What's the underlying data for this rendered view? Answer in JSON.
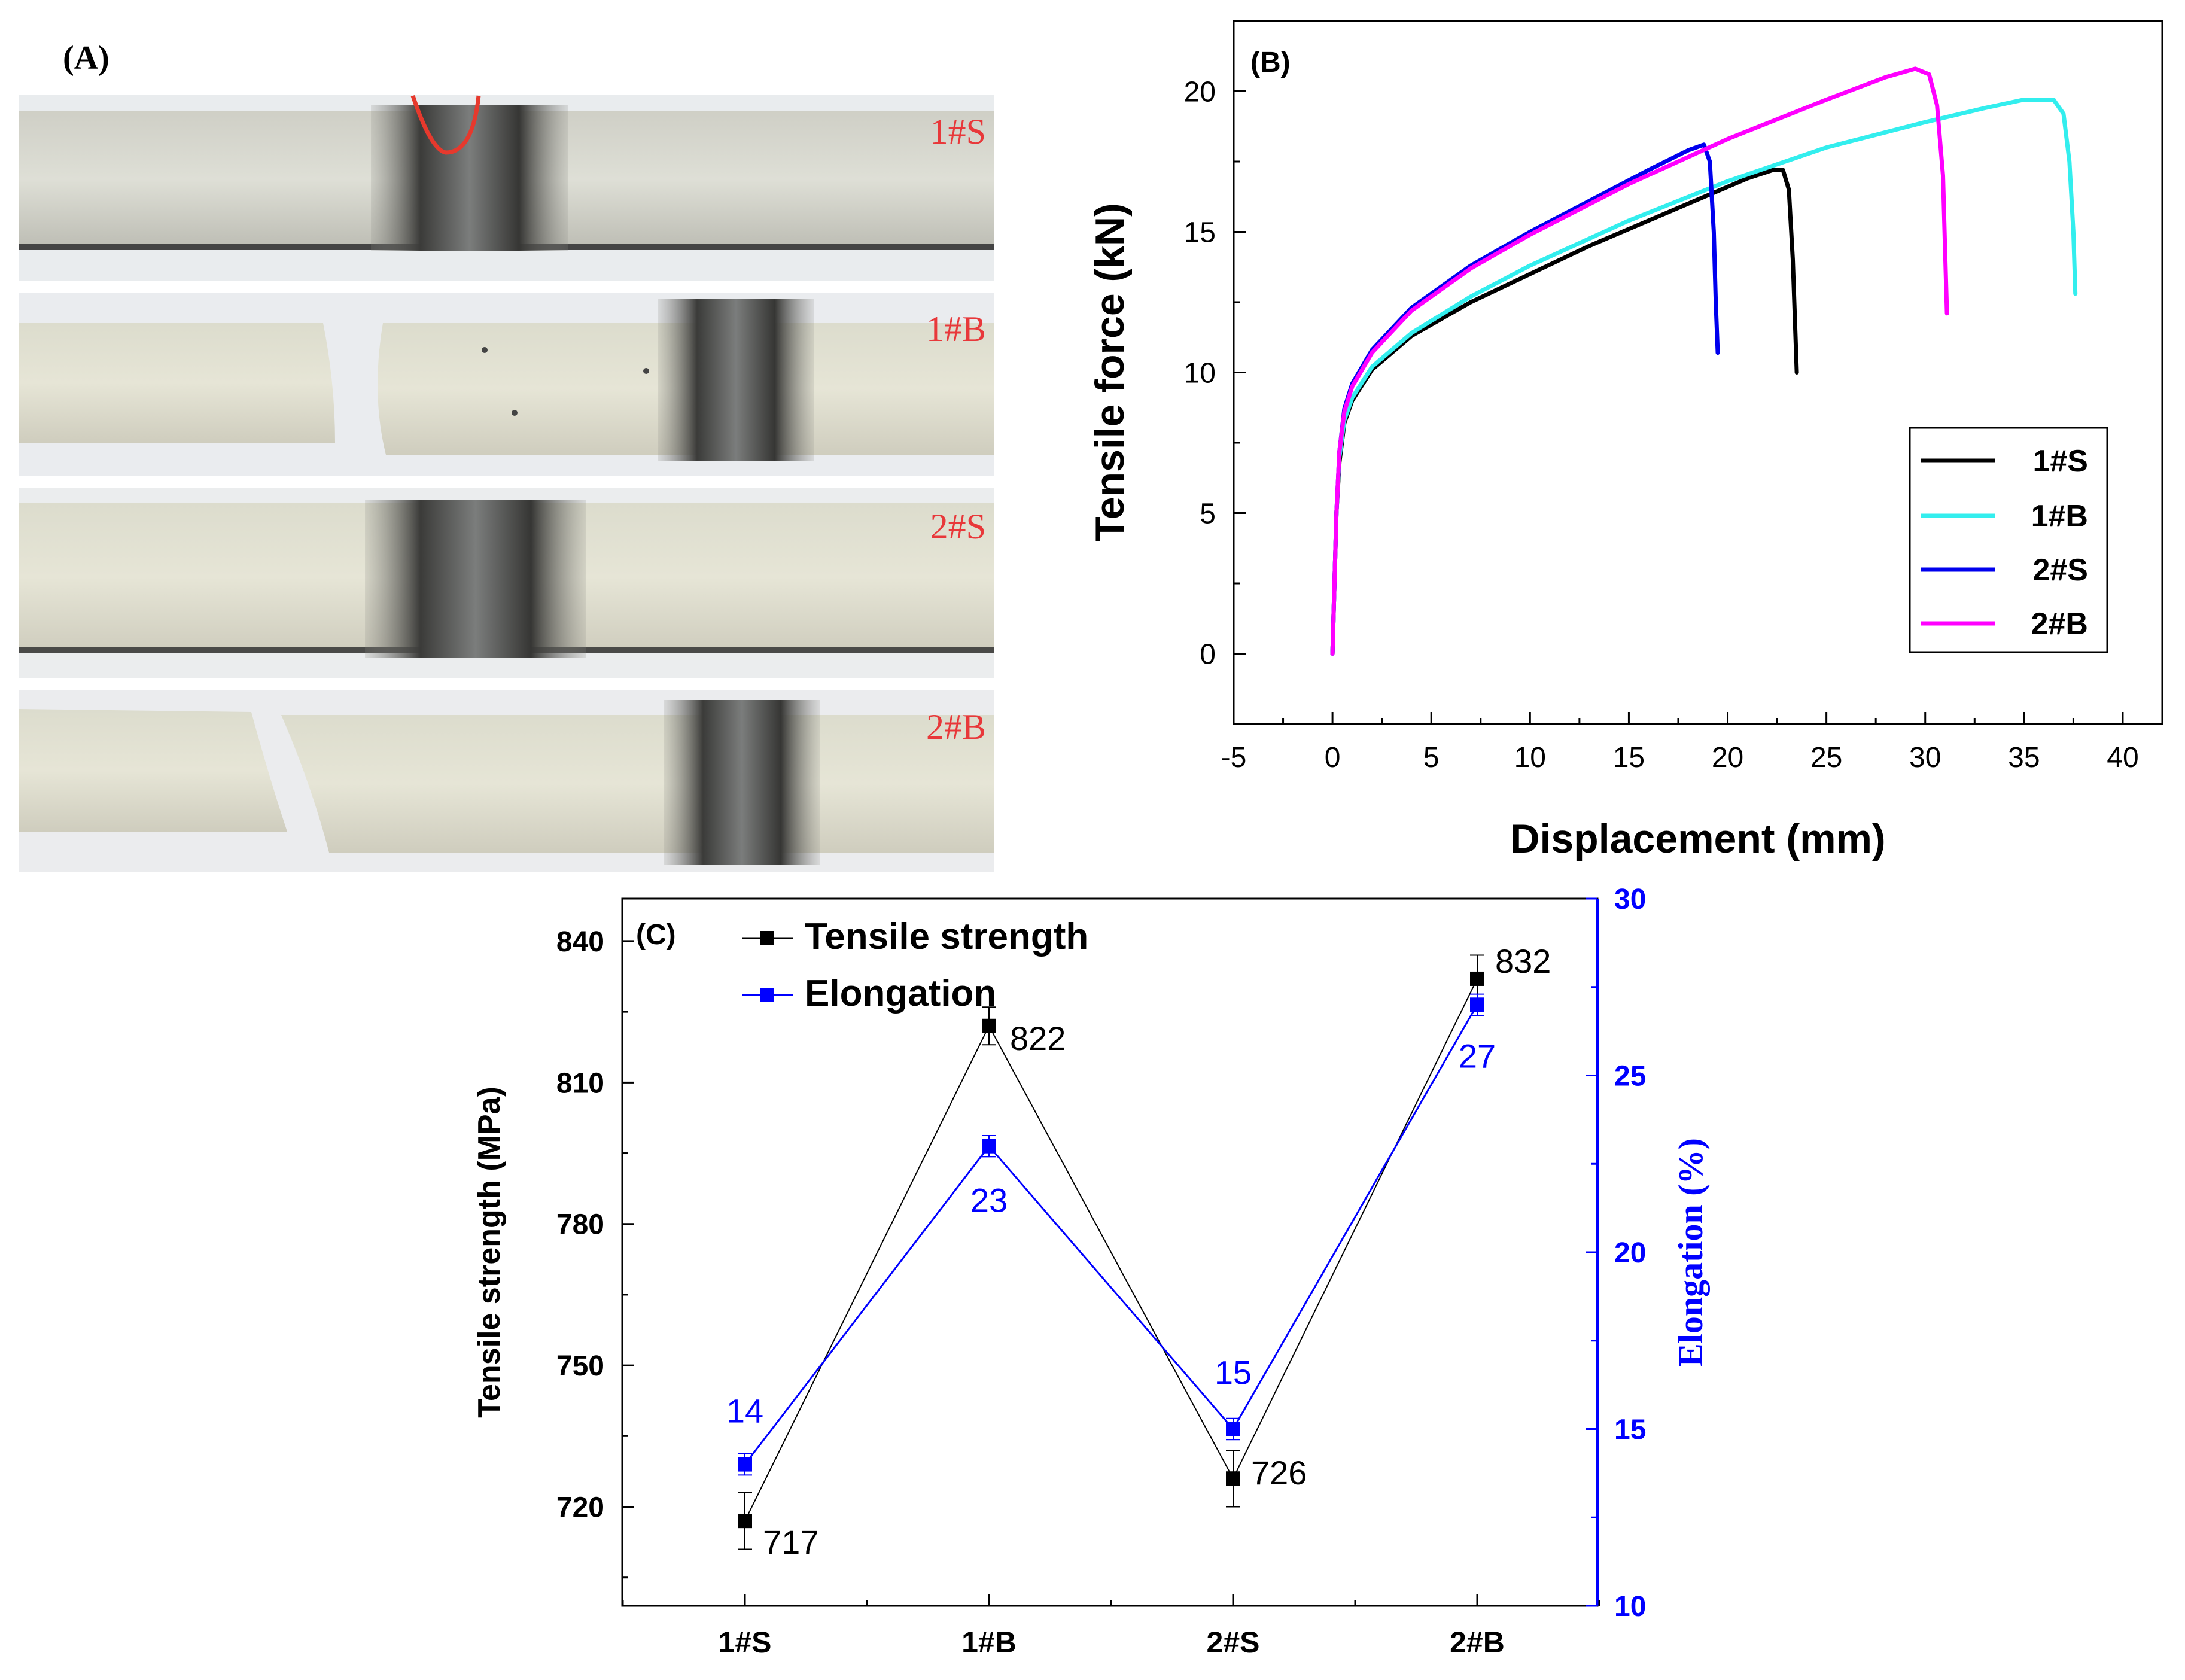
{
  "panel_a": {
    "label": "(A)",
    "specimens": [
      {
        "id": "s1",
        "label": "1#S",
        "fractured": false
      },
      {
        "id": "s2",
        "label": "1#B",
        "fractured": true
      },
      {
        "id": "s3",
        "label": "2#S",
        "fractured": false
      },
      {
        "id": "s4",
        "label": "2#B",
        "fractured": true
      }
    ],
    "label_color": "#e8383a"
  },
  "chart_data": [
    {
      "panel": "B",
      "type": "line",
      "label": "(B)",
      "xlabel": "Displacement (mm)",
      "ylabel": "Tensile force (kN)",
      "xlim": [
        -5,
        42
      ],
      "ylim": [
        -2.5,
        22.5
      ],
      "xticks": [
        -5,
        0,
        5,
        10,
        15,
        20,
        25,
        30,
        35,
        40
      ],
      "yticks": [
        0,
        5,
        10,
        15,
        20
      ],
      "legend_position": "lower-right",
      "series": [
        {
          "name": "1#S",
          "color": "#000000",
          "x": [
            0,
            0.1,
            0.2,
            0.35,
            0.6,
            1,
            2,
            4,
            7,
            10,
            13,
            16,
            19,
            21,
            22.3,
            22.8,
            23.1,
            23.3,
            23.4,
            23.5
          ],
          "y": [
            0,
            2.5,
            5,
            6.8,
            8.2,
            9.0,
            10.1,
            11.3,
            12.5,
            13.5,
            14.5,
            15.4,
            16.3,
            16.9,
            17.2,
            17.2,
            16.5,
            14,
            12,
            10
          ]
        },
        {
          "name": "1#B",
          "color": "#33eeee",
          "x": [
            0,
            0.1,
            0.2,
            0.35,
            0.6,
            1,
            2,
            4,
            7,
            10,
            15,
            20,
            25,
            30,
            33,
            35,
            36.5,
            37,
            37.3,
            37.5,
            37.6
          ],
          "y": [
            0,
            2.5,
            5,
            7.0,
            8.3,
            9.1,
            10.2,
            11.4,
            12.7,
            13.8,
            15.4,
            16.8,
            18.0,
            18.9,
            19.4,
            19.7,
            19.7,
            19.2,
            17.5,
            15,
            12.8
          ]
        },
        {
          "name": "2#S",
          "color": "#0000ee",
          "x": [
            0,
            0.1,
            0.2,
            0.35,
            0.6,
            1,
            2,
            4,
            7,
            10,
            13,
            16,
            18,
            18.8,
            19.1,
            19.3,
            19.4,
            19.5
          ],
          "y": [
            0,
            2.5,
            5,
            7.2,
            8.7,
            9.6,
            10.8,
            12.3,
            13.8,
            15.0,
            16.1,
            17.2,
            17.9,
            18.1,
            17.5,
            15,
            12.5,
            10.7
          ]
        },
        {
          "name": "2#B",
          "color": "#ff00ff",
          "x": [
            0,
            0.1,
            0.2,
            0.35,
            0.6,
            1,
            2,
            4,
            7,
            10,
            15,
            20,
            25,
            28,
            29.5,
            30.2,
            30.6,
            30.9,
            31.0,
            31.1
          ],
          "y": [
            0,
            2.5,
            5,
            7.2,
            8.6,
            9.5,
            10.7,
            12.2,
            13.7,
            14.9,
            16.7,
            18.3,
            19.7,
            20.5,
            20.8,
            20.6,
            19.5,
            17,
            14.5,
            12.1
          ]
        }
      ]
    },
    {
      "panel": "C",
      "type": "line",
      "label": "(C)",
      "categories": [
        "1#S",
        "1#B",
        "2#S",
        "2#B"
      ],
      "ylabel": "Tensile strength (MPa)",
      "y2label": "Elongation (%)",
      "ylim": [
        699,
        849
      ],
      "y2lim": [
        10,
        30
      ],
      "yticks": [
        720,
        750,
        780,
        810,
        840
      ],
      "y2ticks": [
        10,
        15,
        20,
        25,
        30
      ],
      "legend_position": "top-left",
      "series": [
        {
          "name": "Tensile strength",
          "axis": "left",
          "color": "#000000",
          "values": [
            717,
            822,
            726,
            832
          ],
          "errors": [
            6,
            4,
            6,
            5
          ],
          "labels": [
            "717",
            "822",
            "726",
            "832"
          ]
        },
        {
          "name": "Elongation",
          "axis": "right",
          "color": "#0000ff",
          "values": [
            14,
            23,
            15,
            27
          ],
          "errors": [
            0.3,
            0.3,
            0.3,
            0.3
          ],
          "labels": [
            "14",
            "23",
            "15",
            "27"
          ]
        }
      ]
    }
  ]
}
